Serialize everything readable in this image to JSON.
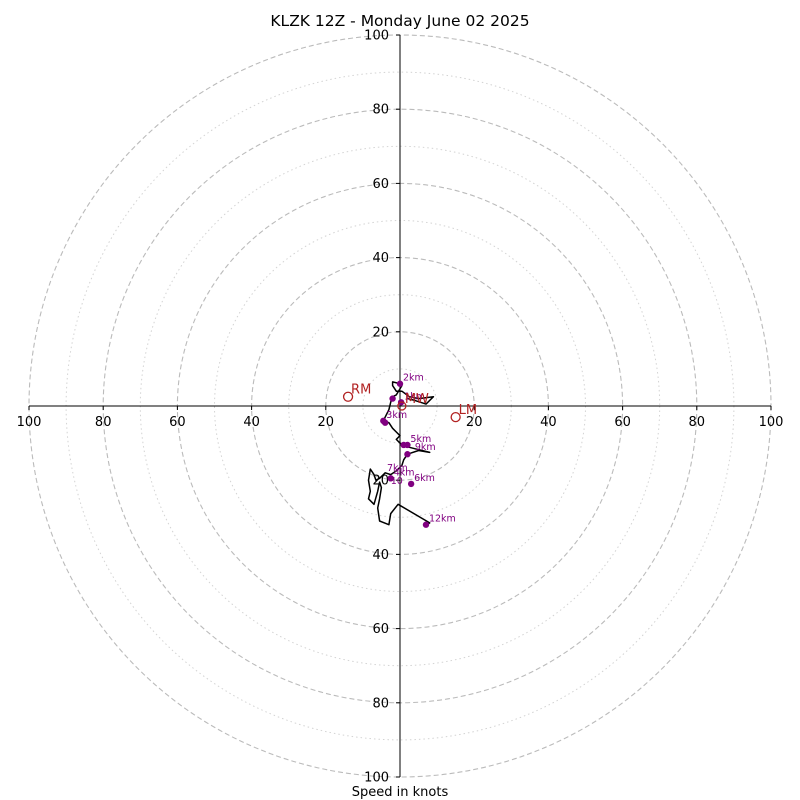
{
  "chart_data": {
    "type": "scatter",
    "subtype": "hodograph",
    "title": "KLZK 12Z - Monday June 02 2025",
    "xlabel": "Speed in knots",
    "ylabel": "",
    "xlim": [
      -100,
      100
    ],
    "ylim": [
      -100,
      100
    ],
    "major_rings": [
      20,
      40,
      60,
      80,
      100
    ],
    "minor_rings": [
      10,
      30,
      50,
      70,
      90
    ],
    "x_tick_labels": [
      "100",
      "80",
      "60",
      "40",
      "20",
      "20",
      "40",
      "60",
      "80",
      "100"
    ],
    "y_tick_labels": [
      "100",
      "80",
      "60",
      "40",
      "20",
      "20",
      "40",
      "60",
      "80",
      "100"
    ],
    "grid": true,
    "colors": {
      "trace": "#000000",
      "height_markers": "#800080",
      "storm_motion": "#b22222",
      "major_ring": "#bbbbbb",
      "minor_ring": "#d3d3d3"
    },
    "hodograph_trace": [
      [
        2.0,
        2.0
      ],
      [
        4.0,
        1.5
      ],
      [
        7.0,
        0.5
      ],
      [
        9.0,
        2.5
      ],
      [
        5.0,
        2.0
      ],
      [
        2.5,
        2.5
      ],
      [
        0.5,
        4.0
      ],
      [
        -1.0,
        4.0
      ],
      [
        -2.0,
        5.5
      ],
      [
        -2.0,
        6.5
      ],
      [
        0.0,
        6.0
      ],
      [
        0.5,
        5.5
      ],
      [
        -1.0,
        3.0
      ],
      [
        -2.0,
        2.5
      ],
      [
        -2.5,
        1.0
      ],
      [
        -3.0,
        -1.0
      ],
      [
        -4.5,
        -4.0
      ],
      [
        -3.0,
        -4.5
      ],
      [
        -2.0,
        -6.0
      ],
      [
        -1.0,
        -7.0
      ],
      [
        0.0,
        -8.0
      ],
      [
        -1.0,
        -9.0
      ],
      [
        0.0,
        -10.0
      ],
      [
        2.0,
        -11.0
      ],
      [
        4.0,
        -11.5
      ],
      [
        8.0,
        -12.5
      ],
      [
        5.0,
        -12.0
      ],
      [
        2.0,
        -13.0
      ],
      [
        1.0,
        -14.5
      ],
      [
        0.5,
        -16.0
      ],
      [
        -1.0,
        -17.5
      ],
      [
        -2.5,
        -18.5
      ],
      [
        -4.0,
        -18.0
      ],
      [
        -5.5,
        -19.5
      ],
      [
        -6.5,
        -20.0
      ],
      [
        -7.0,
        -18.5
      ],
      [
        -8.0,
        -17.0
      ],
      [
        -8.5,
        -20.0
      ],
      [
        -8.0,
        -23.0
      ],
      [
        -8.5,
        -25.0
      ],
      [
        -7.0,
        -26.5
      ],
      [
        -6.0,
        -23.0
      ],
      [
        -5.5,
        -20.5
      ],
      [
        -5.0,
        -22.0
      ],
      [
        -5.5,
        -25.0
      ],
      [
        -6.0,
        -27.5
      ],
      [
        -5.5,
        -31.0
      ],
      [
        -3.0,
        -32.0
      ],
      [
        -2.5,
        -29.0
      ],
      [
        -0.5,
        -26.5
      ],
      [
        8.0,
        -31.5
      ],
      [
        7.0,
        -32.0
      ]
    ],
    "height_markers": [
      {
        "label": "1km",
        "x": 0.3,
        "y": 1.0
      },
      {
        "label": "2km",
        "x": 0.0,
        "y": 6.0
      },
      {
        "label": "3km",
        "x": -4.5,
        "y": -4.0
      },
      {
        "label": "4km",
        "x": -2.5,
        "y": -19.5
      },
      {
        "label": "5km",
        "x": 2.0,
        "y": -10.5
      },
      {
        "label": "6km",
        "x": 3.0,
        "y": -21.0
      },
      {
        "label": "12km",
        "x": 7.0,
        "y": -32.0
      }
    ],
    "height_marker_extras": [
      {
        "x": -2.0,
        "y": 2.0
      },
      {
        "x": -4.0,
        "y": -4.5
      },
      {
        "x": 2.0,
        "y": -13.0
      },
      {
        "x": 1.0,
        "y": -10.5
      }
    ],
    "storm_motion": [
      {
        "label": "RM",
        "x": -14.0,
        "y": 2.5
      },
      {
        "label": "LM",
        "x": 15.0,
        "y": -3.0
      },
      {
        "label": "MW",
        "x": 0.5,
        "y": 0.0
      }
    ],
    "extra_labels": [
      {
        "label": "9km",
        "x": 4.0,
        "y": -11.8
      },
      {
        "label": "7km",
        "x": -3.5,
        "y": -17.5
      },
      {
        "label": "10",
        "x": -2.5,
        "y": -21.0
      }
    ]
  }
}
